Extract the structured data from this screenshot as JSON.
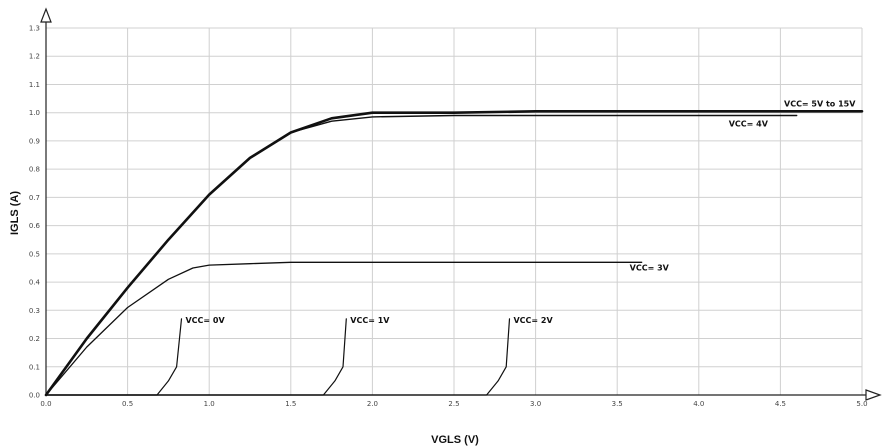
{
  "chart_data": {
    "type": "line",
    "xlabel": "VGLS (V)",
    "ylabel": "IGLS (A)",
    "xlim": [
      0.0,
      5.0
    ],
    "ylim": [
      0.0,
      1.3
    ],
    "x_ticks": [
      "0.0",
      "0.5",
      "1.0",
      "1.5",
      "2.0",
      "2.5",
      "3.0",
      "3.5",
      "4.0",
      "4.5",
      "5.0"
    ],
    "y_ticks": [
      "0.0",
      "0.1",
      "0.2",
      "0.3",
      "0.4",
      "0.5",
      "0.6",
      "0.7",
      "0.8",
      "0.9",
      "1.0",
      "1.1",
      "1.2",
      "1.3"
    ],
    "grid": true,
    "series": [
      {
        "name": "VCC= 5V to 15V",
        "x": [
          0.0,
          0.25,
          0.5,
          0.75,
          1.0,
          1.25,
          1.5,
          1.75,
          2.0,
          2.5,
          3.0,
          4.0,
          5.0
        ],
        "y": [
          0.0,
          0.2,
          0.38,
          0.55,
          0.71,
          0.84,
          0.93,
          0.98,
          1.0,
          1.0,
          1.005,
          1.005,
          1.005
        ]
      },
      {
        "name": "VCC= 4V",
        "x": [
          0.0,
          0.25,
          0.5,
          0.75,
          1.0,
          1.25,
          1.5,
          1.75,
          2.0,
          2.5,
          3.0,
          4.0,
          4.6
        ],
        "y": [
          0.0,
          0.2,
          0.38,
          0.55,
          0.71,
          0.84,
          0.93,
          0.97,
          0.985,
          0.99,
          0.99,
          0.99,
          0.99
        ]
      },
      {
        "name": "VCC= 3V",
        "x": [
          0.0,
          0.25,
          0.5,
          0.75,
          0.9,
          1.0,
          1.25,
          1.5,
          2.0,
          3.0,
          3.65
        ],
        "y": [
          0.0,
          0.17,
          0.31,
          0.41,
          0.45,
          0.46,
          0.465,
          0.47,
          0.47,
          0.47,
          0.47
        ]
      },
      {
        "name": "VCC= 0V",
        "x": [
          0.0,
          0.68,
          0.75,
          0.8,
          0.83
        ],
        "y": [
          0.0,
          0.0,
          0.05,
          0.1,
          0.27
        ]
      },
      {
        "name": "VCC= 1V",
        "x": [
          0.0,
          1.7,
          1.77,
          1.82,
          1.84
        ],
        "y": [
          0.0,
          0.0,
          0.05,
          0.1,
          0.27
        ]
      },
      {
        "name": "VCC= 2V",
        "x": [
          0.0,
          2.7,
          2.77,
          2.82,
          2.84
        ],
        "y": [
          0.0,
          0.0,
          0.05,
          0.1,
          0.27
        ]
      }
    ]
  }
}
